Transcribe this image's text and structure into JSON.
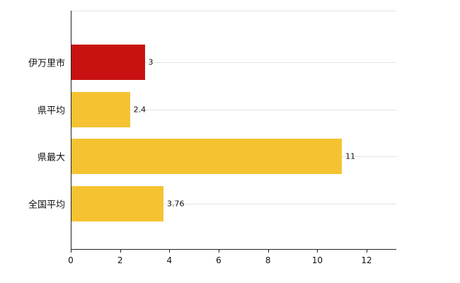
{
  "chart_data": {
    "type": "bar",
    "orientation": "horizontal",
    "title": "",
    "xlabel": "",
    "ylabel": "",
    "categories": [
      "伊万里市",
      "県平均",
      "県最大",
      "全国平均"
    ],
    "values": [
      3,
      2.4,
      11,
      3.76
    ],
    "value_labels": [
      "3",
      "2.4",
      "11",
      "3.76"
    ],
    "bar_colors": [
      "#c81212",
      "#f5c332",
      "#f5c332",
      "#f5c332"
    ],
    "xlim": [
      0,
      13.2
    ],
    "x_ticks": [
      0,
      2,
      4,
      6,
      8,
      10,
      12
    ],
    "x_tick_labels": [
      "0",
      "2",
      "4",
      "6",
      "8",
      "10",
      "12"
    ],
    "grid": "horizontal category lines, on",
    "legend": "none",
    "axis_color": "#222222",
    "grid_color": "#e4e4e4",
    "background_color": "#ffffff"
  }
}
